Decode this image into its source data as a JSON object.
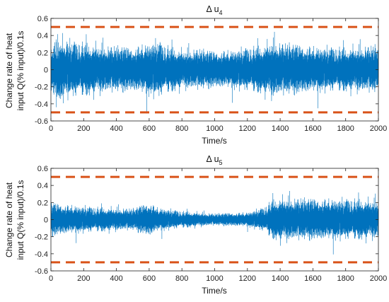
{
  "chart_data": [
    {
      "type": "line",
      "title_symbol": "Δ u",
      "title_subscript": "4",
      "xlabel": "Time/s",
      "ylabel_lines": [
        "Change rate of heat",
        "input Q(% input)/0.1s"
      ],
      "xlim": [
        0,
        2000
      ],
      "ylim": [
        -0.6,
        0.6
      ],
      "xticks": [
        "0",
        "200",
        "400",
        "600",
        "800",
        "1000",
        "1200",
        "1400",
        "1600",
        "1800",
        "2000"
      ],
      "yticks": [
        "-0.6",
        "-0.4",
        "-0.2",
        "0",
        "0.2",
        "0.4",
        "0.6"
      ],
      "grid": false,
      "series": [
        {
          "color": "#0072bd",
          "kind": "noise",
          "samples": 20000,
          "mean": 0,
          "envelope_std": [
            [
              0,
              0.1
            ],
            [
              50,
              0.13
            ],
            [
              100,
              0.12
            ],
            [
              200,
              0.11
            ],
            [
              300,
              0.1
            ],
            [
              400,
              0.095
            ],
            [
              500,
              0.09
            ],
            [
              600,
              0.11
            ],
            [
              650,
              0.12
            ],
            [
              700,
              0.1
            ],
            [
              800,
              0.08
            ],
            [
              900,
              0.085
            ],
            [
              1000,
              0.075
            ],
            [
              1100,
              0.08
            ],
            [
              1200,
              0.09
            ],
            [
              1300,
              0.1
            ],
            [
              1350,
              0.12
            ],
            [
              1400,
              0.11
            ],
            [
              1600,
              0.095
            ],
            [
              1800,
              0.09
            ],
            [
              2000,
              0.1
            ]
          ]
        },
        {
          "color": "#d95319",
          "kind": "dashed",
          "value": 0.5
        },
        {
          "color": "#d95319",
          "kind": "dashed",
          "value": -0.5
        }
      ]
    },
    {
      "type": "line",
      "title_symbol": "Δ u",
      "title_subscript": "5",
      "xlabel": "Time/s",
      "ylabel_lines": [
        "Change rate of heat",
        "input Q(% input)/0.1s"
      ],
      "xlim": [
        0,
        2000
      ],
      "ylim": [
        -0.6,
        0.6
      ],
      "xticks": [
        "0",
        "200",
        "400",
        "600",
        "800",
        "1000",
        "1200",
        "1400",
        "1600",
        "1800",
        "2000"
      ],
      "yticks": [
        "-0.6",
        "-0.4",
        "-0.2",
        "0",
        "0.2",
        "0.4",
        "0.6"
      ],
      "grid": false,
      "series": [
        {
          "color": "#0072bd",
          "kind": "noise",
          "samples": 20000,
          "mean": 0,
          "envelope_std": [
            [
              0,
              0.07
            ],
            [
              100,
              0.06
            ],
            [
              300,
              0.05
            ],
            [
              500,
              0.045
            ],
            [
              600,
              0.07
            ],
            [
              650,
              0.05
            ],
            [
              800,
              0.035
            ],
            [
              1000,
              0.025
            ],
            [
              1200,
              0.03
            ],
            [
              1300,
              0.05
            ],
            [
              1350,
              0.08
            ],
            [
              1400,
              0.09
            ],
            [
              1600,
              0.085
            ],
            [
              1800,
              0.085
            ],
            [
              2000,
              0.08
            ]
          ]
        },
        {
          "color": "#d95319",
          "kind": "dashed",
          "value": 0.5
        },
        {
          "color": "#d95319",
          "kind": "dashed",
          "value": -0.5
        }
      ]
    }
  ]
}
